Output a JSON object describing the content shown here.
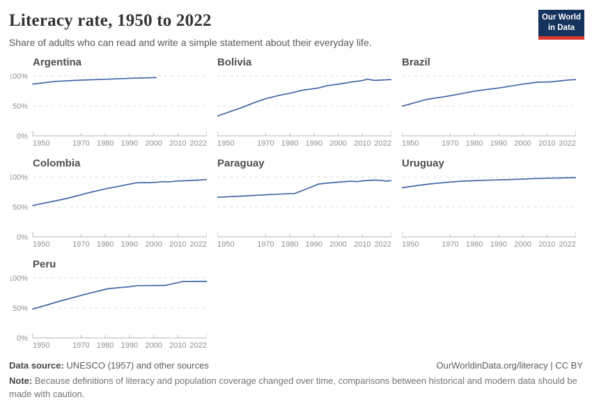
{
  "header": {
    "title": "Literacy rate, 1950 to 2022",
    "subtitle": "Share of adults who can read and write a simple statement about their everyday life.",
    "logo": {
      "line1": "Our World",
      "line2": "in Data",
      "bg_color": "#15335d",
      "accent_color": "#d93a34"
    }
  },
  "chart_data": {
    "type": "line",
    "layout": "small-multiples-3-columns",
    "title": "Literacy rate, 1950 to 2022",
    "xlabel": "",
    "ylabel": "",
    "xlim": [
      1950,
      2022
    ],
    "ylim": [
      0,
      100
    ],
    "grid": "dashed horizontal at 50% and 100%",
    "line_color": "#4264a5",
    "x_ticks": [
      1950,
      1970,
      1980,
      1990,
      2000,
      2010,
      2022
    ],
    "y_ticks": [
      0,
      50,
      100
    ],
    "y_tick_labels": [
      "0%",
      "50%",
      "100%"
    ],
    "series": [
      {
        "name": "Argentina",
        "points": [
          [
            1950,
            86.5
          ],
          [
            1960,
            91
          ],
          [
            1970,
            93
          ],
          [
            1980,
            94.4
          ],
          [
            1991,
            96.2
          ],
          [
            2001,
            97.2
          ]
        ]
      },
      {
        "name": "Bolivia",
        "points": [
          [
            1950,
            33
          ],
          [
            1955,
            40
          ],
          [
            1960,
            47
          ],
          [
            1965,
            55
          ],
          [
            1970,
            62
          ],
          [
            1976,
            67.9
          ],
          [
            1980,
            71
          ],
          [
            1985,
            76
          ],
          [
            1992,
            80
          ],
          [
            1995,
            83.5
          ],
          [
            2001,
            86.7
          ],
          [
            2005,
            89.5
          ],
          [
            2010,
            92.3
          ],
          [
            2012,
            94.5
          ],
          [
            2015,
            92.5
          ],
          [
            2018,
            93.1
          ],
          [
            2022,
            94
          ]
        ]
      },
      {
        "name": "Brazil",
        "points": [
          [
            1950,
            49.4
          ],
          [
            1960,
            60.6
          ],
          [
            1970,
            67
          ],
          [
            1980,
            74.6
          ],
          [
            1991,
            80.5
          ],
          [
            2000,
            86.4
          ],
          [
            2006,
            89.5
          ],
          [
            2009,
            89.8
          ],
          [
            2012,
            90.2
          ],
          [
            2016,
            92
          ],
          [
            2019,
            93.3
          ],
          [
            2022,
            94
          ]
        ]
      },
      {
        "name": "Colombia",
        "points": [
          [
            1950,
            52.5
          ],
          [
            1964,
            64
          ],
          [
            1973,
            73.5
          ],
          [
            1981,
            81
          ],
          [
            1985,
            84
          ],
          [
            1993,
            90.3
          ],
          [
            1996,
            90.6
          ],
          [
            1998,
            90.2
          ],
          [
            2001,
            91
          ],
          [
            2004,
            92.2
          ],
          [
            2006,
            91.6
          ],
          [
            2010,
            93.2
          ],
          [
            2015,
            94.1
          ],
          [
            2018,
            94.7
          ],
          [
            2022,
            95.6
          ]
        ]
      },
      {
        "name": "Paraguay",
        "points": [
          [
            1950,
            66
          ],
          [
            1962,
            68.5
          ],
          [
            1972,
            70.7
          ],
          [
            1982,
            72.5
          ],
          [
            1986,
            78.5
          ],
          [
            1992,
            88.2
          ],
          [
            1996,
            90
          ],
          [
            2000,
            91.3
          ],
          [
            2005,
            92.9
          ],
          [
            2008,
            92.2
          ],
          [
            2010,
            93.5
          ],
          [
            2015,
            94.8
          ],
          [
            2017,
            94.5
          ],
          [
            2020,
            93
          ],
          [
            2022,
            94
          ]
        ]
      },
      {
        "name": "Uruguay",
        "points": [
          [
            1950,
            82
          ],
          [
            1957,
            86
          ],
          [
            1963,
            88.9
          ],
          [
            1970,
            91.5
          ],
          [
            1975,
            93
          ],
          [
            1985,
            94.5
          ],
          [
            1996,
            95.8
          ],
          [
            2006,
            97.4
          ],
          [
            2011,
            98
          ],
          [
            2015,
            98.2
          ],
          [
            2022,
            98.8
          ]
        ]
      },
      {
        "name": "Peru",
        "points": [
          [
            1950,
            48
          ],
          [
            1961,
            61
          ],
          [
            1972,
            73
          ],
          [
            1981,
            82
          ],
          [
            1986,
            84
          ],
          [
            1990,
            85.5
          ],
          [
            1993,
            87
          ],
          [
            2000,
            87.4
          ],
          [
            2005,
            87.7
          ],
          [
            2007,
            89.6
          ],
          [
            2012,
            93.9
          ],
          [
            2017,
            94.2
          ],
          [
            2022,
            94.3
          ]
        ]
      }
    ]
  },
  "footer": {
    "source_label": "Data source:",
    "source_text": " UNESCO (1957) and other sources",
    "link": "OurWorldinData.org/literacy | CC BY",
    "note_label": "Note:",
    "note_text": " Because definitions of literacy and population coverage changed over time, comparisons between historical and modern data should be made with caution."
  }
}
